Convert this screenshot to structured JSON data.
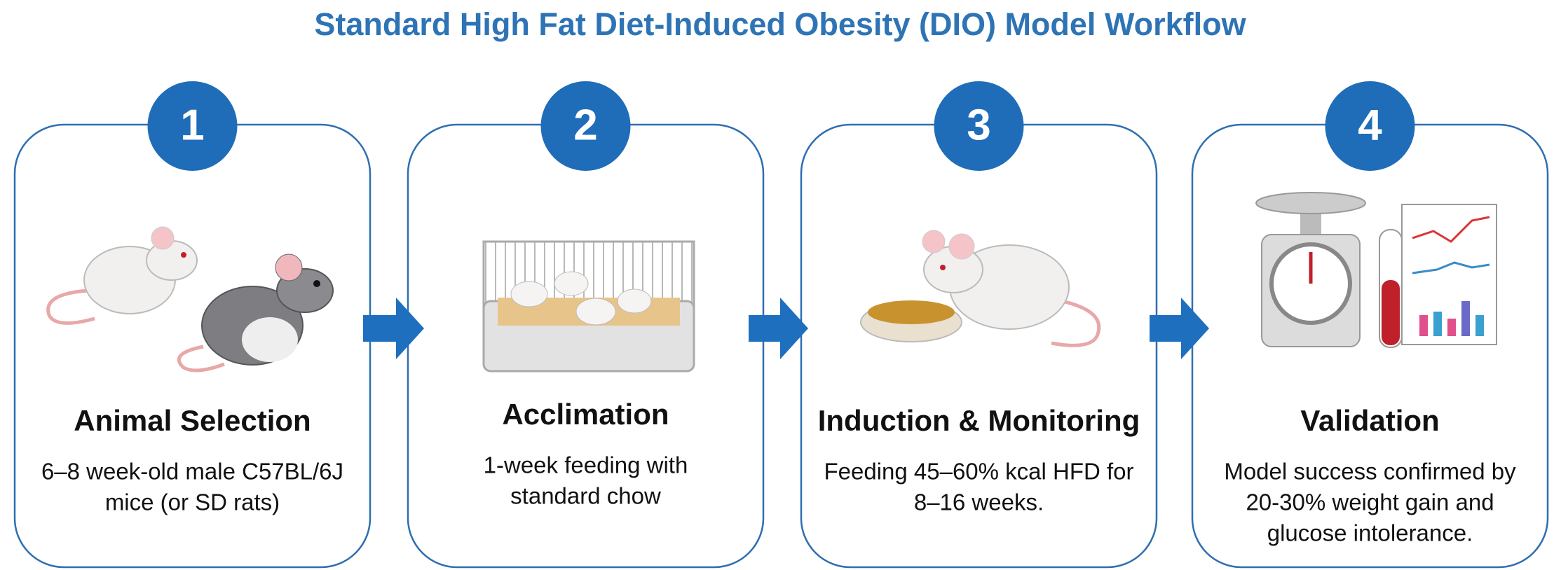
{
  "header": {
    "title": "Standard High Fat Diet-Induced Obesity (DIO) Model Workflow"
  },
  "steps": [
    {
      "number": "1",
      "title": "Animal Selection",
      "description": [
        "6–8 week-old male C57BL/6J",
        "mice (or SD rats)"
      ]
    },
    {
      "number": "2",
      "title": "Acclimation",
      "description": [
        "1-week feeding with",
        "standard chow"
      ]
    },
    {
      "number": "3",
      "title": "Induction & Monitoring",
      "description": [
        "Feeding 45–60% kcal HFD for",
        "8–16 weeks."
      ]
    },
    {
      "number": "4",
      "title": "Validation",
      "description": [
        "Model success confirmed by",
        "20-30% weight gain and",
        "glucose intolerance."
      ]
    }
  ]
}
